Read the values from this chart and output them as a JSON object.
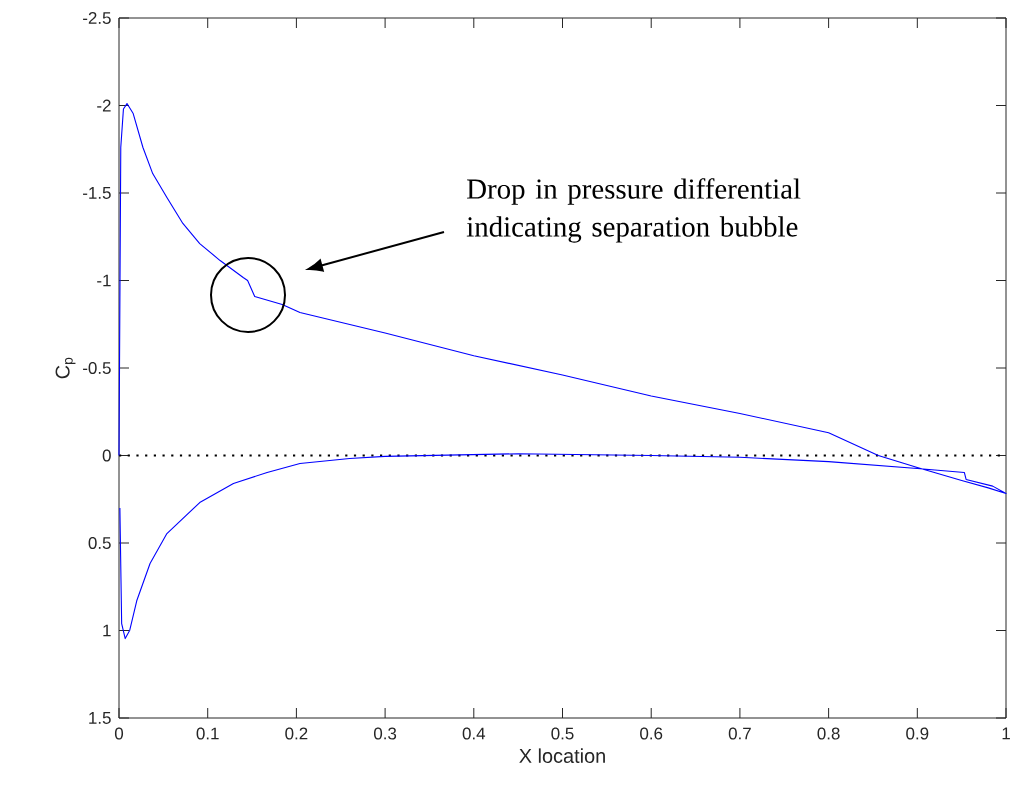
{
  "chart_data": {
    "type": "line",
    "xlabel": "X location",
    "ylabel": "C$_{p}$",
    "xlim": [
      0,
      1
    ],
    "ylim": [
      1.5,
      -2.5
    ],
    "xticks": [
      0,
      0.1,
      0.2,
      0.3,
      0.4,
      0.5,
      0.6,
      0.7,
      0.8,
      0.9,
      1
    ],
    "yticks": [
      -2.5,
      -2,
      -1.5,
      -1,
      -0.5,
      0,
      0.5,
      1,
      1.5
    ],
    "grid": false,
    "marker": "none",
    "line_style": "solid",
    "ref_lines": [
      {
        "axis": "y",
        "value": 0,
        "color": "#000000",
        "line_style": "dotted"
      }
    ],
    "annotations": [
      "Drop in pressure differential indicating separation bubble"
    ],
    "series": [
      {
        "color": "#0000ff",
        "x": [
          0,
          0.002,
          0.005,
          0.009,
          0.016,
          0.027,
          0.038,
          0.054,
          0.072,
          0.091,
          0.114,
          0.14,
          0.145,
          0.153,
          0.184,
          0.204,
          0.3,
          0.4,
          0.5,
          0.6,
          0.7,
          0.8,
          0.856,
          0.9,
          0.95,
          0.98,
          1,
          0.985,
          0.955,
          0.953,
          0.9,
          0.8,
          0.7,
          0.6,
          0.45,
          0.3,
          0.26,
          0.204,
          0.167,
          0.129,
          0.091,
          0.054,
          0.035,
          0.02,
          0.012,
          0.007,
          0.003,
          0.001
        ],
        "values": [
          0,
          -1.76,
          -1.98,
          -2.011,
          -1.954,
          -1.76,
          -1.611,
          -1.474,
          -1.326,
          -1.211,
          -1.114,
          -1.017,
          -1.0,
          -0.909,
          -0.863,
          -0.817,
          -0.7,
          -0.57,
          -0.46,
          -0.34,
          -0.24,
          -0.13,
          0,
          0.069,
          0.143,
          0.185,
          0.217,
          0.175,
          0.137,
          0.097,
          0.074,
          0.035,
          0.01,
          0,
          -0.01,
          0.005,
          0.017,
          0.046,
          0.097,
          0.16,
          0.269,
          0.446,
          0.617,
          0.83,
          1.0,
          1.046,
          0.96,
          0.3
        ]
      }
    ]
  }
}
